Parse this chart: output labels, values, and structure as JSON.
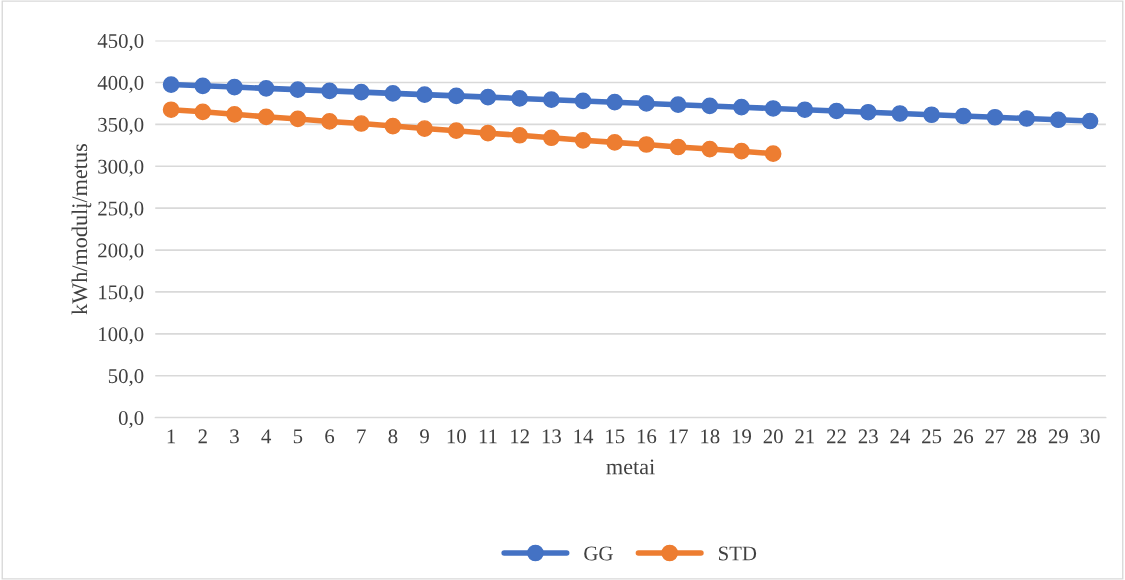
{
  "chart_data": {
    "type": "line",
    "xlabel": "metai",
    "ylabel": "kWh/modulį/metus",
    "categories": [
      "1",
      "2",
      "3",
      "4",
      "5",
      "6",
      "7",
      "8",
      "9",
      "10",
      "11",
      "12",
      "13",
      "14",
      "15",
      "16",
      "17",
      "18",
      "19",
      "20",
      "21",
      "22",
      "23",
      "24",
      "25",
      "26",
      "27",
      "28",
      "29",
      "30"
    ],
    "series": [
      {
        "name": "GG",
        "color": "#4472c4",
        "values": [
          397.5,
          396,
          394.5,
          393,
          391.5,
          390,
          388.5,
          387,
          385.5,
          384,
          382.5,
          381,
          379.5,
          378,
          376.5,
          375,
          373.5,
          372,
          370.5,
          369,
          367.5,
          366,
          364.5,
          363,
          361.5,
          360,
          358.5,
          357,
          355.5,
          354
        ]
      },
      {
        "name": "STD",
        "color": "#ed7d31",
        "values": [
          367.5,
          365,
          362,
          359,
          356.5,
          353.5,
          351,
          348,
          345,
          342.5,
          339.5,
          337,
          334,
          331,
          328.5,
          326,
          323,
          320.5,
          318,
          315,
          null,
          null,
          null,
          null,
          null,
          null,
          null,
          null,
          null,
          null
        ]
      }
    ],
    "ylim": [
      0,
      450
    ],
    "yticks": [
      {
        "value": 0,
        "label": "0,0"
      },
      {
        "value": 50,
        "label": "50,0"
      },
      {
        "value": 100,
        "label": "100,0"
      },
      {
        "value": 150,
        "label": "150,0"
      },
      {
        "value": 200,
        "label": "200,0"
      },
      {
        "value": 250,
        "label": "250,0"
      },
      {
        "value": 300,
        "label": "300,0"
      },
      {
        "value": 350,
        "label": "350,0"
      },
      {
        "value": 400,
        "label": "400,0"
      },
      {
        "value": 450,
        "label": "450,0"
      }
    ],
    "grid": "y",
    "legend": "bottom",
    "marker": "circle",
    "line_style": "solid"
  }
}
